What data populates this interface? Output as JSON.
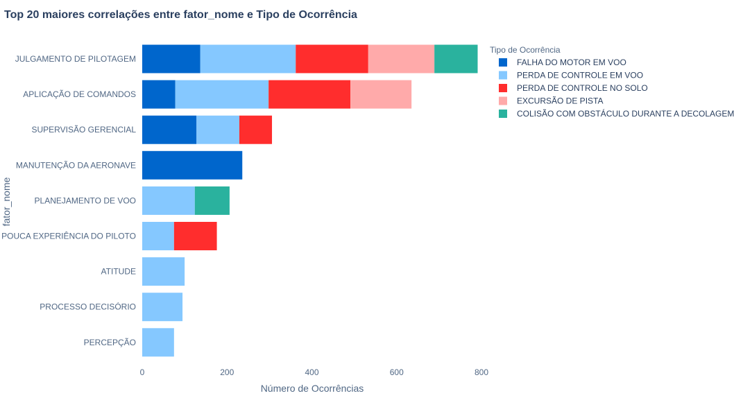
{
  "chart_data": {
    "type": "bar",
    "orientation": "horizontal",
    "barmode": "stack",
    "title": "Top 20 maiores correlações entre fator_nome e Tipo de Ocorrência",
    "xlabel": "Número de Ocorrências",
    "ylabel": "fator_nome",
    "xlim": [
      0,
      800
    ],
    "xticks": [
      0,
      200,
      400,
      600,
      800
    ],
    "grid": false,
    "legend_title": "Tipo de Ocorrência",
    "legend_position": "top-right",
    "categories": [
      "JULGAMENTO DE PILOTAGEM",
      "APLICAÇÃO DE COMANDOS",
      "SUPERVISÃO GERENCIAL",
      "MANUTENÇÃO DA AERONAVE",
      "PLANEJAMENTO DE VOO",
      "POUCA EXPERIÊNCIA DO PILOTO",
      "ATITUDE",
      "PROCESSO DECISÓRIO",
      "PERCEPÇÃO"
    ],
    "series": [
      {
        "name": "FALHA DO MOTOR EM VOO",
        "color": "#0066cc",
        "values": [
          137,
          78,
          128,
          236,
          0,
          0,
          0,
          0,
          0
        ]
      },
      {
        "name": "PERDA DE CONTROLE EM VOO",
        "color": "#85c8ff",
        "values": [
          225,
          220,
          101,
          0,
          124,
          75,
          100,
          95,
          75
        ]
      },
      {
        "name": "PERDA DE CONTROLE NO SOLO",
        "color": "#ff2d2d",
        "values": [
          171,
          193,
          77,
          0,
          0,
          101,
          0,
          0,
          0
        ]
      },
      {
        "name": "EXCURSÃO DE PISTA",
        "color": "#ffaaaa",
        "values": [
          156,
          144,
          0,
          0,
          0,
          0,
          0,
          0,
          0
        ]
      },
      {
        "name": "COLISÃO COM OBSTÁCULO DURANTE A DECOLAGEM",
        "color": "#2ab29e",
        "values": [
          102,
          0,
          0,
          0,
          82,
          0,
          0,
          0,
          0
        ]
      }
    ]
  }
}
